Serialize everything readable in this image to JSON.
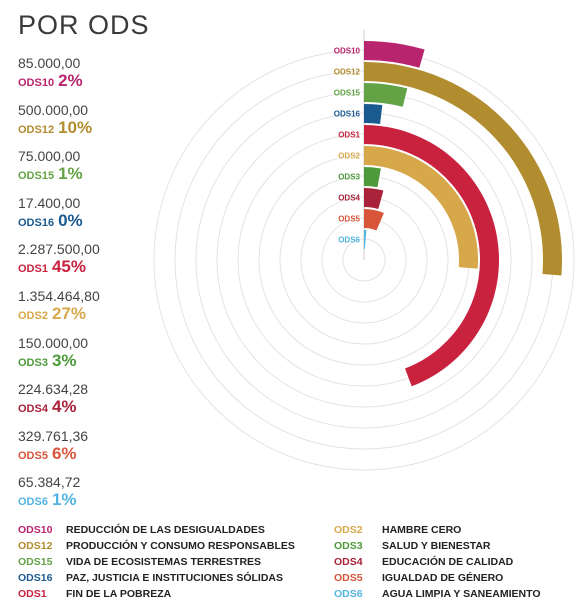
{
  "title": "POR ODS",
  "stats": [
    {
      "amount": "85.000,00",
      "code": "ODS10",
      "pct": "2%",
      "color": "#b8256e"
    },
    {
      "amount": "500.000,00",
      "code": "ODS12",
      "pct": "10%",
      "color": "#b28d2f"
    },
    {
      "amount": "75.000,00",
      "code": "ODS15",
      "pct": "1%",
      "color": "#63a346"
    },
    {
      "amount": "17.400,00",
      "code": "ODS16",
      "pct": "0%",
      "color": "#1b5a8f"
    },
    {
      "amount": "2.287.500,00",
      "code": "ODS1",
      "pct": "45%",
      "color": "#c8223f"
    },
    {
      "amount": "1.354.464,80",
      "code": "ODS2",
      "pct": "27%",
      "color": "#d7a84a"
    },
    {
      "amount": "150.000,00",
      "code": "ODS3",
      "pct": "3%",
      "color": "#4c9a3a"
    },
    {
      "amount": "224.634,28",
      "code": "ODS4",
      "pct": "4%",
      "color": "#a8223a"
    },
    {
      "amount": "329.761,36",
      "code": "ODS5",
      "pct": "6%",
      "color": "#d8553a"
    },
    {
      "amount": "65.384,72",
      "code": "ODS6",
      "pct": "1%",
      "color": "#52b4e0"
    }
  ],
  "legend": [
    {
      "code": "ODS10",
      "name": "REDUCCIÓN DE LAS DESIGUALDADES",
      "color": "#b8256e"
    },
    {
      "code": "ODS12",
      "name": "PRODUCCIÓN Y CONSUMO RESPONSABLES",
      "color": "#b28d2f"
    },
    {
      "code": "ODS15",
      "name": "VIDA DE ECOSISTEMAS TERRESTRES",
      "color": "#63a346"
    },
    {
      "code": "ODS16",
      "name": "PAZ, JUSTICIA E INSTITUCIONES SÓLIDAS",
      "color": "#1b5a8f"
    },
    {
      "code": "ODS1",
      "name": "FIN DE LA POBREZA",
      "color": "#c8223f"
    },
    {
      "code": "ODS2",
      "name": "HAMBRE CERO",
      "color": "#d7a84a"
    },
    {
      "code": "ODS3",
      "name": "SALUD Y BIENESTAR",
      "color": "#4c9a3a"
    },
    {
      "code": "ODS4",
      "name": "EDUCACIÓN DE CALIDAD",
      "color": "#a8223a"
    },
    {
      "code": "ODS5",
      "name": "IGUALDAD DE GÉNERO",
      "color": "#d8553a"
    },
    {
      "code": "ODS6",
      "name": "AGUA LIMPIA Y SANEAMIENTO",
      "color": "#52b4e0"
    }
  ],
  "chart_data": {
    "type": "radial-bar",
    "groups": [
      {
        "bars": [
          {
            "code": "ODS10",
            "value": 85000.0,
            "percent": 2,
            "color": "#b8256e"
          },
          {
            "code": "ODS12",
            "value": 500000.0,
            "percent": 10,
            "color": "#b28d2f"
          },
          {
            "code": "ODS15",
            "value": 75000.0,
            "percent": 1,
            "color": "#63a346"
          },
          {
            "code": "ODS16",
            "value": 17400.0,
            "percent": 0,
            "color": "#1b5a8f"
          }
        ]
      },
      {
        "bars": [
          {
            "code": "ODS1",
            "value": 2287500.0,
            "percent": 45,
            "color": "#c8223f"
          },
          {
            "code": "ODS2",
            "value": 1354464.8,
            "percent": 27,
            "color": "#d7a84a"
          },
          {
            "code": "ODS3",
            "value": 150000.0,
            "percent": 3,
            "color": "#4c9a3a"
          },
          {
            "code": "ODS4",
            "value": 224634.28,
            "percent": 4,
            "color": "#a8223a"
          },
          {
            "code": "ODS5",
            "value": 329761.36,
            "percent": 6,
            "color": "#d8553a"
          },
          {
            "code": "ODS6",
            "value": 65384.72,
            "percent": 1,
            "color": "#52b4e0"
          }
        ]
      }
    ]
  }
}
